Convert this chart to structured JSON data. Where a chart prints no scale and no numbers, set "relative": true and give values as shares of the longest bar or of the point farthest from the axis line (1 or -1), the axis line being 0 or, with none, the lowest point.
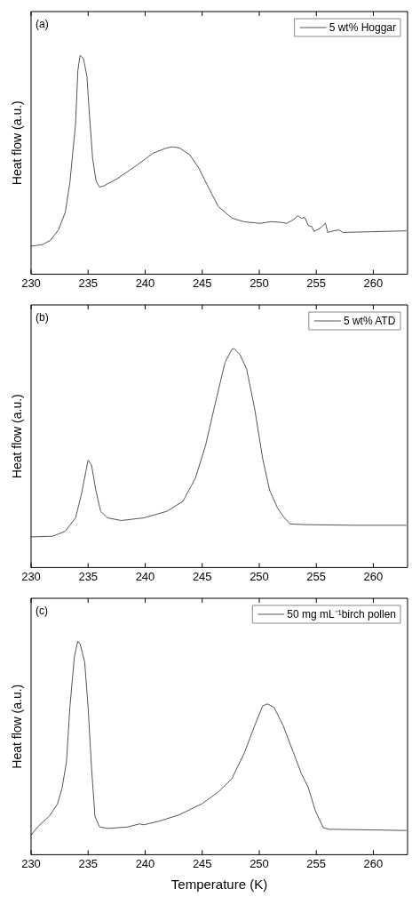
{
  "chart_data": [
    {
      "type": "line",
      "relative": true,
      "ylabel": "Heat flow (a.u.)",
      "annotations": [
        "(a)"
      ],
      "legend": "top right",
      "xlim": [
        230,
        263
      ],
      "xticks": [
        230,
        235,
        240,
        245,
        250,
        255,
        260
      ],
      "x": [
        230,
        231,
        231.7,
        232.4,
        233,
        233.4,
        233.9,
        234.1,
        234.3,
        234.6,
        234.9,
        235.1,
        235.4,
        235.7,
        236,
        236.4,
        237.6,
        239.3,
        240.7,
        241.9,
        242.4,
        243,
        243.9,
        244.7,
        245.6,
        246.4,
        247.6,
        248.7,
        250.1,
        251,
        251.9,
        252.4,
        253,
        253.4,
        253.7,
        254,
        254.3,
        254.6,
        254.8,
        255.3,
        255.8,
        256,
        256.6,
        257,
        257.3,
        259.9,
        262.9
      ],
      "series": [
        {
          "name": "5 wt% Hoggar",
          "color": "#555555",
          "values": [
            0.128,
            0.135,
            0.155,
            0.202,
            0.283,
            0.418,
            0.687,
            0.93,
            1,
            0.984,
            0.903,
            0.741,
            0.526,
            0.425,
            0.398,
            0.404,
            0.438,
            0.499,
            0.553,
            0.577,
            0.582,
            0.577,
            0.546,
            0.485,
            0.391,
            0.31,
            0.256,
            0.239,
            0.232,
            0.24,
            0.237,
            0.232,
            0.249,
            0.267,
            0.256,
            0.259,
            0.222,
            0.218,
            0.195,
            0.209,
            0.233,
            0.191,
            0.199,
            0.202,
            0.191,
            0.194,
            0.198
          ]
        }
      ]
    },
    {
      "type": "line",
      "relative": true,
      "ylabel": "Heat flow (a.u.)",
      "annotations": [
        "(b)"
      ],
      "legend": "top right",
      "xlim": [
        230,
        263
      ],
      "xticks": [
        230,
        235,
        240,
        245,
        250,
        255,
        260
      ],
      "x": [
        230,
        231.9,
        233,
        233.9,
        234.4,
        234.8,
        235,
        235.3,
        235.7,
        236.1,
        236.7,
        237.9,
        239.9,
        241.9,
        243.3,
        244.4,
        245.3,
        246.1,
        247,
        247.6,
        247.8,
        248.3,
        248.9,
        249.6,
        250.3,
        250.9,
        251.6,
        252.1,
        252.7,
        254.1,
        258.4,
        262.9
      ],
      "series": [
        {
          "name": "5 wt% ATD",
          "color": "#555555",
          "values": [
            0.14,
            0.143,
            0.166,
            0.227,
            0.332,
            0.438,
            0.491,
            0.468,
            0.347,
            0.257,
            0.227,
            0.215,
            0.227,
            0.257,
            0.302,
            0.408,
            0.559,
            0.74,
            0.937,
            0.997,
            1,
            0.974,
            0.906,
            0.725,
            0.498,
            0.355,
            0.272,
            0.234,
            0.199,
            0.196,
            0.193,
            0.193
          ]
        }
      ]
    },
    {
      "type": "line",
      "relative": true,
      "ylabel": "Heat flow (a.u.)",
      "xlabel": "Temperature (K)",
      "annotations": [
        "(c)"
      ],
      "legend": "top right",
      "xlim": [
        230,
        263
      ],
      "xticks": [
        230,
        235,
        240,
        245,
        250,
        255,
        260
      ],
      "x": [
        230,
        230.7,
        231.6,
        232.3,
        232.7,
        233.1,
        233.4,
        233.8,
        234.1,
        234.3,
        234.7,
        235,
        235.3,
        235.6,
        236,
        236.7,
        238.4,
        239.5,
        239.9,
        241.3,
        243,
        245,
        246.4,
        247.6,
        248.7,
        249.6,
        250.3,
        250.7,
        251.3,
        252.1,
        253,
        253.7,
        254.3,
        254.9,
        255.6,
        256.1,
        259.9,
        262.9
      ],
      "series": [
        {
          "name": "50 mg mL⁻¹birch pollen",
          "color": "#555555",
          "values": [
            0.092,
            0.137,
            0.18,
            0.236,
            0.307,
            0.434,
            0.689,
            0.929,
            1,
            0.986,
            0.901,
            0.689,
            0.406,
            0.18,
            0.13,
            0.123,
            0.129,
            0.144,
            0.14,
            0.158,
            0.187,
            0.239,
            0.293,
            0.356,
            0.477,
            0.604,
            0.696,
            0.706,
            0.689,
            0.604,
            0.477,
            0.378,
            0.314,
            0.208,
            0.127,
            0.119,
            0.116,
            0.113
          ]
        }
      ]
    }
  ]
}
